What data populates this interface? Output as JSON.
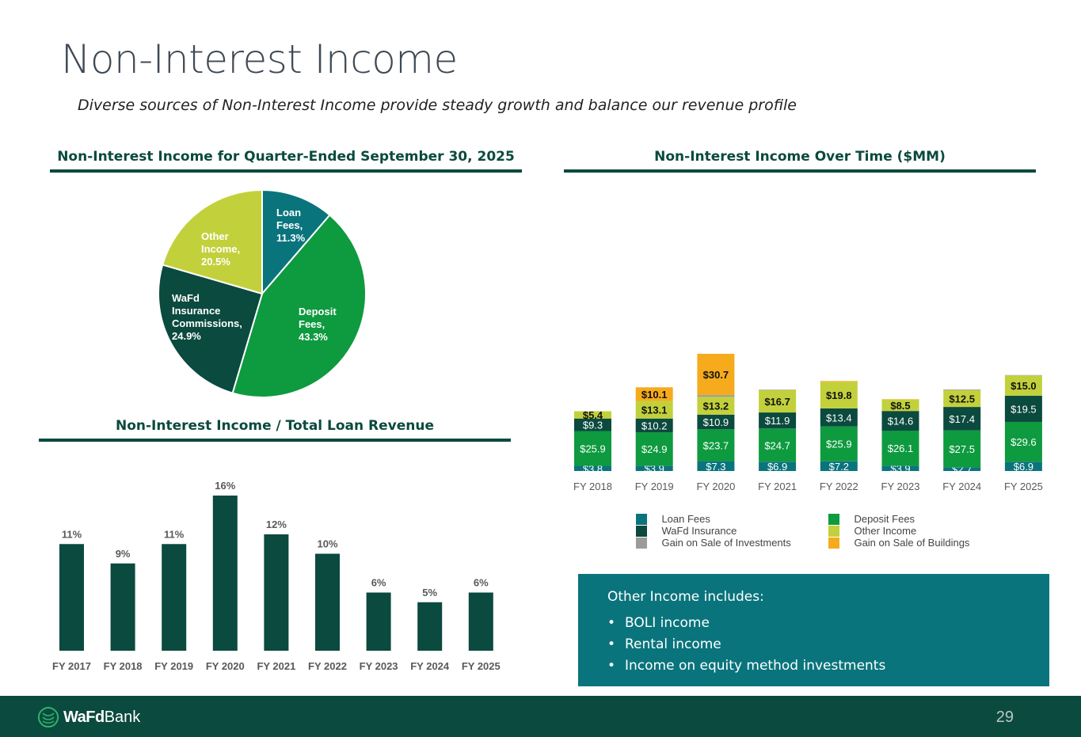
{
  "page": {
    "title": "Non-Interest Income",
    "subtitle": "Diverse sources of Non-Interest Income provide steady growth and balance our revenue profile",
    "page_number": "29"
  },
  "logo": {
    "bold": "WaFd",
    "regular": "Bank"
  },
  "note": {
    "title": "Other Income includes:",
    "items": [
      "BOLI income",
      "Rental income",
      "Income on equity method investments"
    ]
  },
  "colors": {
    "dark_green": "#0b4a3e",
    "loan_fees": "#0a747c",
    "deposit_fees": "#0e9a3f",
    "wafd_insurance": "#0b4a3e",
    "other_income": "#c2d13b",
    "gain_investments": "#9b9b9b",
    "gain_buildings": "#f6ab1c",
    "ratio_bar": "#0b4a3e"
  },
  "chart_data": [
    {
      "type": "pie",
      "title": "Non-Interest Income for Quarter-Ended September 30, 2025",
      "slices": [
        {
          "name": "Loan Fees",
          "label": [
            "Loan",
            "Fees,",
            "11.3%"
          ],
          "value": 11.3,
          "color": "#0a747c"
        },
        {
          "name": "Deposit Fees",
          "label": [
            "Deposit",
            "Fees,",
            "43.3%"
          ],
          "value": 43.3,
          "color": "#0e9a3f"
        },
        {
          "name": "WaFd Insurance Commissions",
          "label": [
            "WaFd",
            "Insurance",
            "Commissions,",
            "24.9%"
          ],
          "value": 24.9,
          "color": "#0b4a3e"
        },
        {
          "name": "Other Income",
          "label": [
            "Other",
            "Income,",
            "20.5%"
          ],
          "value": 20.5,
          "color": "#c2d13b"
        }
      ]
    },
    {
      "type": "bar",
      "title": "Non-Interest Income / Total Loan Revenue",
      "categories": [
        "FY 2017",
        "FY 2018",
        "FY 2019",
        "FY 2020",
        "FY 2021",
        "FY 2022",
        "FY 2023",
        "FY 2024",
        "FY 2025"
      ],
      "values": [
        11,
        9,
        11,
        16,
        12,
        10,
        6,
        5,
        6
      ],
      "value_labels": [
        "11%",
        "9%",
        "11%",
        "16%",
        "12%",
        "10%",
        "6%",
        "5%",
        "6%"
      ],
      "ylim": [
        0,
        16
      ]
    },
    {
      "type": "bar",
      "stacked": true,
      "title": "Non-Interest Income Over Time ($MM)",
      "categories": [
        "FY 2018",
        "FY 2019",
        "FY 2020",
        "FY 2021",
        "FY 2022",
        "FY 2023",
        "FY 2024",
        "FY 2025"
      ],
      "series": [
        {
          "name": "Loan Fees",
          "values": [
            3.8,
            3.9,
            7.3,
            6.9,
            7.2,
            3.9,
            2.7,
            6.9
          ],
          "labels": [
            "$3.8",
            "$3.9",
            "$7.3",
            "$6.9",
            "$7.2",
            "$3.9",
            "$2.7",
            "$6.9"
          ]
        },
        {
          "name": "Deposit Fees",
          "values": [
            25.9,
            24.9,
            23.7,
            24.7,
            25.9,
            26.1,
            27.5,
            29.6
          ],
          "labels": [
            "$25.9",
            "$24.9",
            "$23.7",
            "$24.7",
            "$25.9",
            "$26.1",
            "$27.5",
            "$29.6"
          ]
        },
        {
          "name": "WaFd Insurance",
          "values": [
            9.3,
            10.2,
            10.9,
            11.9,
            13.4,
            14.6,
            17.4,
            19.5
          ],
          "labels": [
            "$9.3",
            "$10.2",
            "$10.9",
            "$11.9",
            "$13.4",
            "$14.6",
            "$17.4",
            "$19.5"
          ]
        },
        {
          "name": "Other Income",
          "values": [
            5.4,
            13.1,
            13.2,
            16.7,
            19.8,
            8.5,
            12.5,
            15.0
          ],
          "labels": [
            "$5.4",
            "$13.1",
            "$13.2",
            "$16.7",
            "$19.8",
            "$8.5",
            "$12.5",
            "$15.0"
          ]
        },
        {
          "name": "Gain on Sale of Investments",
          "values": [
            0,
            0,
            1.3,
            0.3,
            0,
            0,
            0.5,
            0.3
          ],
          "labels": [
            "",
            "",
            "",
            "",
            "",
            "",
            "",
            ""
          ]
        },
        {
          "name": "Gain on Sale of Buildings",
          "values": [
            0,
            10.1,
            30.7,
            0,
            0.6,
            0.3,
            0,
            0
          ],
          "labels": [
            "",
            "$10.1",
            "$30.7",
            "",
            "",
            "",
            "",
            ""
          ]
        }
      ],
      "legend": [
        "Loan Fees",
        "Deposit Fees",
        "WaFd Insurance",
        "Other Income",
        "Gain on Sale of Investments",
        "Gain on Sale of Buildings"
      ],
      "legend_position": "bottom"
    }
  ]
}
